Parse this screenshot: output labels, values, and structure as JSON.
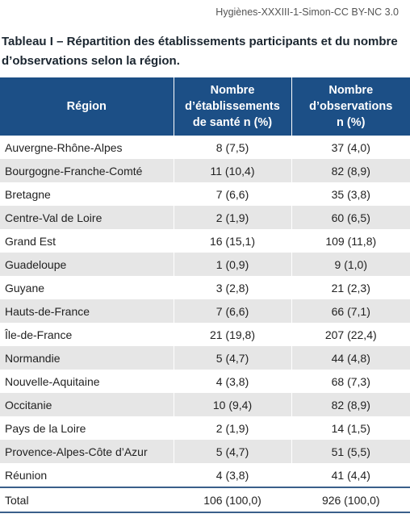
{
  "credit": "Hygiènes-XXXIII-1-Simon-CC BY-NC 3.0",
  "caption": {
    "line1": "Tableau I – Répartition des établissements participants et du nombre",
    "line2": "d’observations selon la région."
  },
  "header": {
    "region": "Région",
    "col2": [
      "Nombre",
      "d’établissements",
      "de santé n (%)"
    ],
    "col3": [
      "Nombre",
      "d’observations",
      "n (%)"
    ]
  },
  "rows": [
    {
      "region": "Auvergne-Rhône-Alpes",
      "etab": "8 (7,5)",
      "obs": "37 (4,0)"
    },
    {
      "region": "Bourgogne-Franche-Comté",
      "etab": "11 (10,4)",
      "obs": "82 (8,9)"
    },
    {
      "region": "Bretagne",
      "etab": "7 (6,6)",
      "obs": "35 (3,8)"
    },
    {
      "region": "Centre-Val de Loire",
      "etab": "2 (1,9)",
      "obs": "60 (6,5)"
    },
    {
      "region": "Grand Est",
      "etab": "16 (15,1)",
      "obs": "109 (11,8)"
    },
    {
      "region": "Guadeloupe",
      "etab": "1 (0,9)",
      "obs": "9 (1,0)"
    },
    {
      "region": "Guyane",
      "etab": "3 (2,8)",
      "obs": "21 (2,3)"
    },
    {
      "region": "Hauts-de-France",
      "etab": "7 (6,6)",
      "obs": "66 (7,1)"
    },
    {
      "region": "Île-de-France",
      "etab": "21 (19,8)",
      "obs": "207 (22,4)"
    },
    {
      "region": "Normandie",
      "etab": "5 (4,7)",
      "obs": "44 (4,8)"
    },
    {
      "region": "Nouvelle-Aquitaine",
      "etab": "4 (3,8)",
      "obs": "68 (7,3)"
    },
    {
      "region": "Occitanie",
      "etab": "10 (9,4)",
      "obs": "82 (8,9)"
    },
    {
      "region": "Pays de la Loire",
      "etab": "2 (1,9)",
      "obs": "14 (1,5)"
    },
    {
      "region": "Provence-Alpes-Côte d’Azur",
      "etab": "5 (4,7)",
      "obs": "51 (5,5)"
    },
    {
      "region": "Réunion",
      "etab": "4 (3,8)",
      "obs": "41 (4,4)"
    }
  ],
  "total": {
    "region": "Total",
    "etab": "106 (100,0)",
    "obs": "926 (100,0)"
  },
  "colors": {
    "header_bg": "#1c4f86",
    "stripe": "#e6e6e6",
    "rule": "#3a5f8a"
  }
}
